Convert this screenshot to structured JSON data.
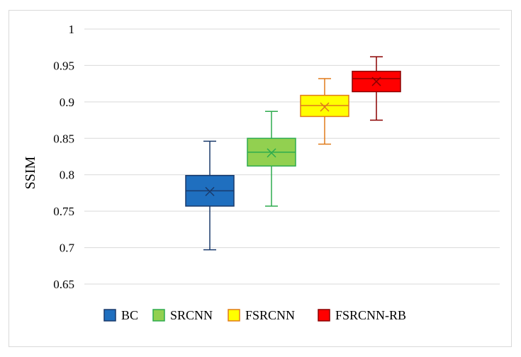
{
  "chart_data": {
    "type": "box",
    "ylabel": "SSIM",
    "ylim": [
      0.65,
      1.0
    ],
    "yticks": [
      "0.65",
      "0.7",
      "0.75",
      "0.8",
      "0.85",
      "0.9",
      "0.95",
      "1"
    ],
    "grid": true,
    "legend_position": "bottom",
    "series": [
      {
        "name": "BC",
        "color": "#1f6fbf",
        "edge": "#1a3a6b",
        "min": 0.697,
        "q1": 0.757,
        "median": 0.778,
        "q3": 0.799,
        "max": 0.846,
        "mean": 0.777
      },
      {
        "name": "SRCNN",
        "color": "#92d050",
        "edge": "#2eab4e",
        "min": 0.757,
        "q1": 0.812,
        "median": 0.831,
        "q3": 0.85,
        "max": 0.887,
        "mean": 0.83
      },
      {
        "name": "FSRCNN",
        "color": "#ffff00",
        "edge": "#e07a1a",
        "min": 0.842,
        "q1": 0.88,
        "median": 0.895,
        "q3": 0.909,
        "max": 0.932,
        "mean": 0.893
      },
      {
        "name": "FSRCNN-RB",
        "color": "#ff0000",
        "edge": "#8b0000",
        "min": 0.875,
        "q1": 0.914,
        "median": 0.932,
        "q3": 0.942,
        "max": 0.962,
        "mean": 0.928
      }
    ]
  }
}
